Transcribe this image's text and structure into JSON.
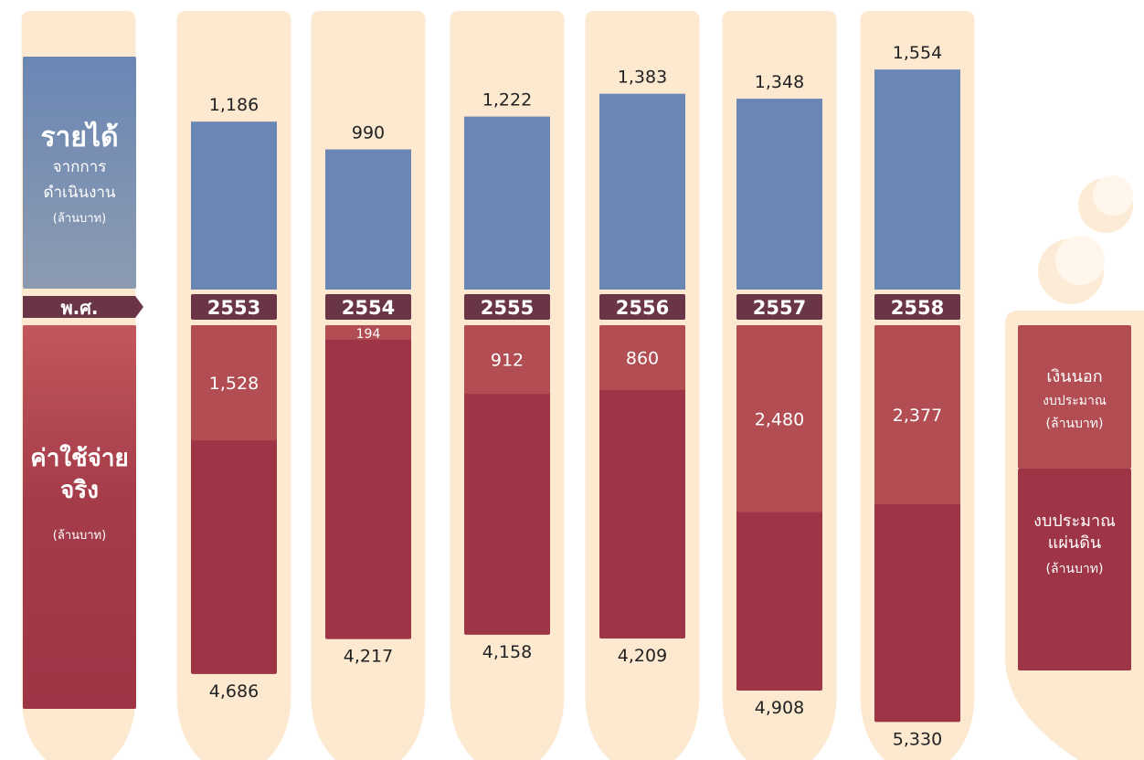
{
  "legend": {
    "income_title": "รายได้",
    "income_sub1": "จากการ",
    "income_sub2": "ดำเนินงาน",
    "income_unit": "(ล้านบาท)",
    "year_label": "พ.ศ.",
    "expense_title1": "ค่าใช้จ่าย",
    "expense_title2": "จริง",
    "expense_unit": "(ล้านบาท)"
  },
  "right_legend": {
    "offbudget_title": "เงินนอก",
    "offbudget_sub": "งบประมาณ",
    "offbudget_unit": "(ล้านบาท)",
    "state_title1": "งบประมาณ",
    "state_title2": "แผ่นดิน",
    "state_unit": "(ล้านบาท)"
  },
  "colors": {
    "tube": "#FCE9D0",
    "income": "#6A86B4",
    "offbudget": "#B24E53",
    "state_budget": "#9E3546",
    "year_bar": "#6A3547",
    "year_text": "#FFFFFF",
    "value_text": "#222222",
    "segment_text": "#FFFFFF"
  },
  "chart_data": {
    "type": "bar",
    "categories": [
      "2553",
      "2554",
      "2555",
      "2556",
      "2557",
      "2558"
    ],
    "series": [
      {
        "name": "รายได้จากการดำเนินงาน",
        "values": [
          1186,
          990,
          1222,
          1383,
          1348,
          1554
        ],
        "labels": [
          "1,186",
          "990",
          "1,222",
          "1,383",
          "1,348",
          "1,554"
        ]
      },
      {
        "name": "เงินนอกงบประมาณ",
        "values": [
          1528,
          194,
          912,
          860,
          2480,
          2377
        ],
        "labels": [
          "1,528",
          "194",
          "912",
          "860",
          "2,480",
          "2,377"
        ]
      },
      {
        "name": "ค่าใช้จ่ายจริง",
        "values": [
          4686,
          4217,
          4158,
          4209,
          4908,
          5330
        ],
        "labels": [
          "4,686",
          "4,217",
          "4,158",
          "4,209",
          "4,908",
          "5,330"
        ]
      }
    ]
  }
}
